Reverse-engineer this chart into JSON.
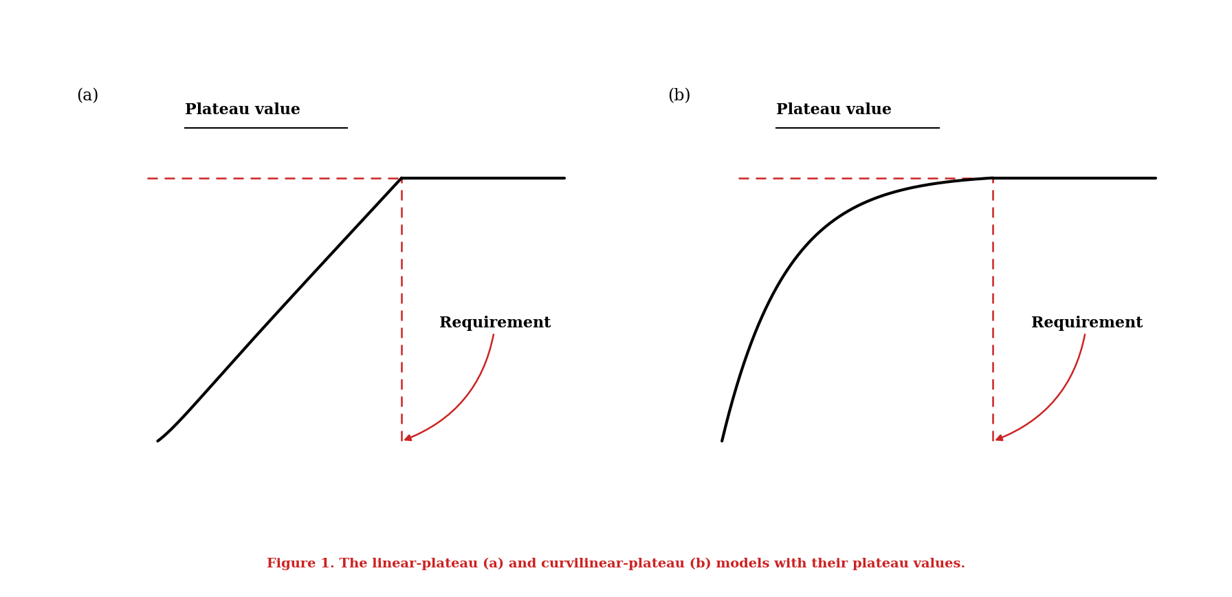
{
  "background_color": "#faf0ee",
  "outer_background": "#ffffff",
  "curve_color": "#000000",
  "dashed_color": "#cc2222",
  "text_color_black": "#000000",
  "text_color_red": "#cc2222",
  "line_width": 3.0,
  "dashed_lw": 1.8,
  "label_a": "(a)",
  "label_b": "(b)",
  "plateau_label": "Plateau value",
  "requirement_label": "Requirement",
  "figure_caption": "Figure 1. The linear-plateau (a) and curvilinear-plateau (b) models with their plateau values.",
  "caption_fontsize": 14,
  "label_fontsize": 16,
  "panel_label_fontsize": 17
}
